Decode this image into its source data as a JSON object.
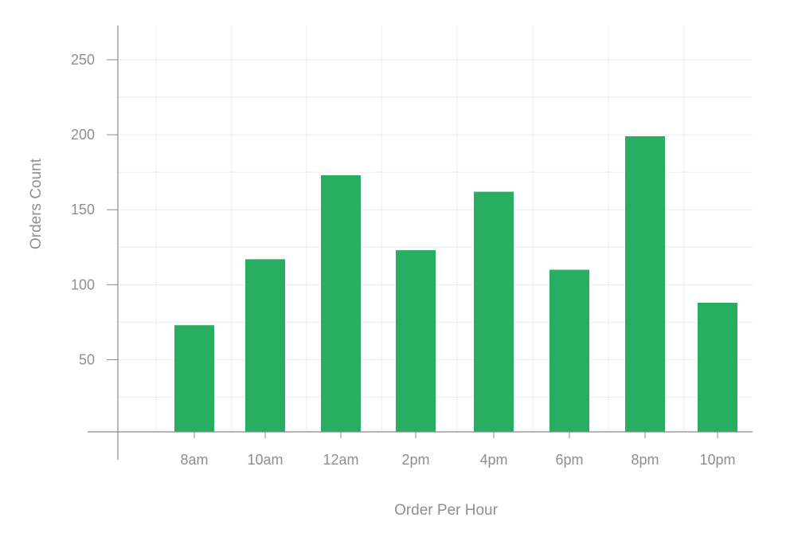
{
  "chart_data": {
    "type": "bar",
    "title": "",
    "xlabel": "Order Per Hour",
    "ylabel": "Orders Count",
    "categories": [
      "8am",
      "10am",
      "12am",
      "2pm",
      "4pm",
      "6pm",
      "8pm",
      "10pm"
    ],
    "values": [
      73,
      117,
      173,
      123,
      162,
      110,
      199,
      88
    ],
    "ylim": [
      -5,
      270
    ],
    "yticks": [
      50,
      100,
      150,
      200,
      250
    ],
    "grid": true,
    "legend": "none",
    "colors": {
      "bar": "#27ae60",
      "grid": "#ececec",
      "axis": "#8a8a8a",
      "text": "#8f8f8f"
    }
  }
}
